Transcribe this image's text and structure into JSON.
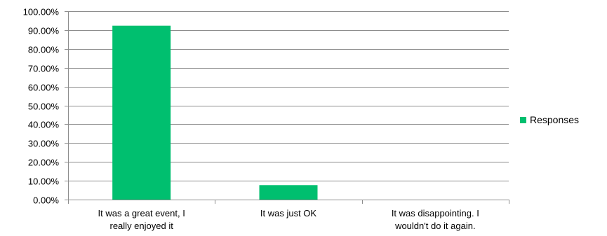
{
  "chart_data": {
    "type": "bar",
    "categories": [
      [
        "It was a great event, I",
        "really enjoyed it"
      ],
      [
        "It was just OK"
      ],
      [
        "It was disappointing. I",
        "wouldn't do it again."
      ]
    ],
    "series": [
      {
        "name": "Responses",
        "values": [
          92.31,
          7.69,
          0
        ],
        "color": "#00BF6F"
      }
    ],
    "ylim": [
      0,
      100
    ],
    "yticks": [
      "0.00%",
      "10.00%",
      "20.00%",
      "30.00%",
      "40.00%",
      "50.00%",
      "60.00%",
      "70.00%",
      "80.00%",
      "90.00%",
      "100.00%"
    ],
    "grid": true,
    "legend": "right"
  }
}
